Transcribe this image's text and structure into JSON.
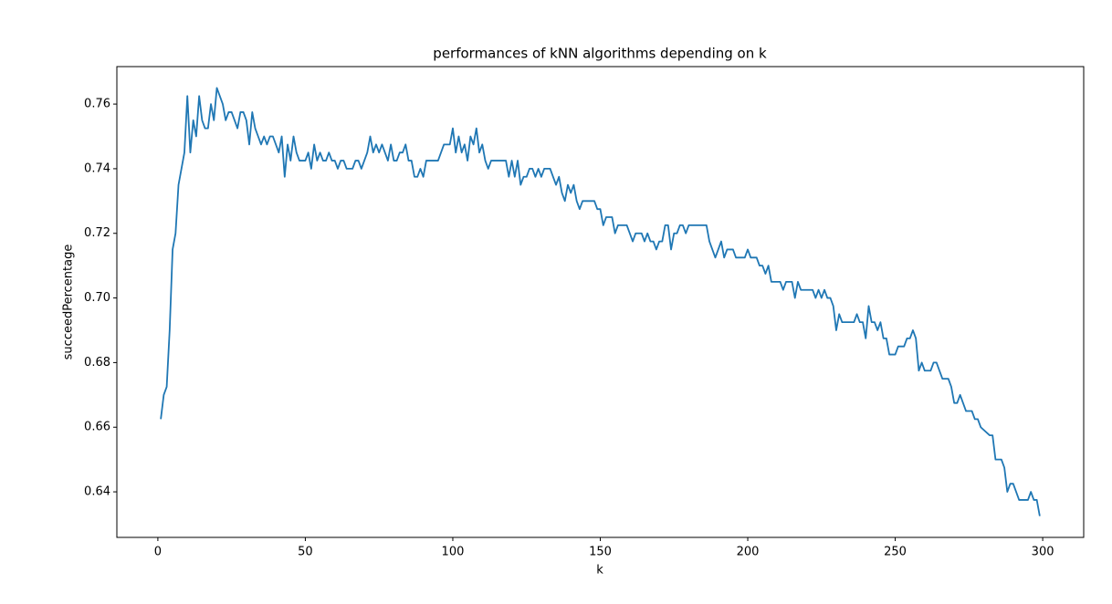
{
  "chart_data": {
    "type": "line",
    "title": "performances of kNN algorithms depending on k",
    "x_label": "k",
    "y_label": "succeedPercentage",
    "x": [
      1,
      2,
      3,
      4,
      5,
      6,
      7,
      8,
      9,
      10,
      11,
      12,
      13,
      14,
      15,
      16,
      17,
      18,
      19,
      20,
      21,
      22,
      23,
      24,
      25,
      26,
      27,
      28,
      29,
      30,
      31,
      32,
      33,
      34,
      35,
      36,
      37,
      38,
      39,
      40,
      41,
      42,
      43,
      44,
      45,
      46,
      47,
      48,
      50,
      51,
      52,
      53,
      54,
      55,
      56,
      57,
      58,
      59,
      60,
      61,
      62,
      63,
      64,
      66,
      67,
      68,
      69,
      70,
      71,
      72,
      73,
      74,
      75,
      76,
      77,
      78,
      79,
      80,
      81,
      82,
      83,
      84,
      85,
      86,
      87,
      88,
      89,
      90,
      91,
      95,
      96,
      97,
      99,
      100,
      101,
      102,
      103,
      104,
      105,
      106,
      107,
      108,
      109,
      110,
      111,
      112,
      113,
      118,
      119,
      120,
      121,
      122,
      123,
      124,
      125,
      126,
      127,
      128,
      129,
      130,
      131,
      133,
      134,
      135,
      136,
      137,
      138,
      139,
      140,
      141,
      142,
      143,
      144,
      148,
      149,
      150,
      151,
      152,
      154,
      155,
      156,
      159,
      160,
      161,
      162,
      164,
      165,
      166,
      167,
      168,
      169,
      170,
      171,
      172,
      173,
      174,
      175,
      176,
      177,
      178,
      179,
      180,
      186,
      187,
      188,
      189,
      190,
      191,
      192,
      193,
      195,
      196,
      199,
      200,
      201,
      203,
      204,
      205,
      206,
      207,
      208,
      211,
      212,
      213,
      215,
      216,
      217,
      218,
      222,
      223,
      224,
      225,
      226,
      227,
      228,
      229,
      230,
      231,
      232,
      236,
      237,
      238,
      239,
      240,
      241,
      242,
      243,
      244,
      245,
      246,
      247,
      248,
      250,
      251,
      253,
      254,
      255,
      256,
      257,
      258,
      259,
      260,
      262,
      263,
      264,
      265,
      266,
      268,
      269,
      270,
      271,
      272,
      273,
      274,
      276,
      277,
      278,
      279,
      282,
      283,
      284,
      286,
      287,
      288,
      289,
      290,
      291,
      292,
      295,
      296,
      297,
      298,
      299
    ],
    "series": [
      {
        "name": "succeedPercentage",
        "color": "#1f77b4",
        "values": [
          0.6625,
          0.67,
          0.6725,
          0.69,
          0.715,
          0.72,
          0.735,
          0.74,
          0.745,
          0.7625,
          0.745,
          0.755,
          0.75,
          0.7625,
          0.755,
          0.7525,
          0.7525,
          0.76,
          0.755,
          0.765,
          0.7625,
          0.76,
          0.755,
          0.7575,
          0.7575,
          0.755,
          0.7525,
          0.7575,
          0.7575,
          0.755,
          0.7475,
          0.7575,
          0.7525,
          0.75,
          0.7475,
          0.75,
          0.7475,
          0.75,
          0.75,
          0.7475,
          0.745,
          0.75,
          0.7375,
          0.7475,
          0.7425,
          0.75,
          0.745,
          0.7425,
          0.7425,
          0.745,
          0.74,
          0.7475,
          0.7425,
          0.745,
          0.7425,
          0.7425,
          0.745,
          0.7425,
          0.7425,
          0.74,
          0.7425,
          0.7425,
          0.74,
          0.74,
          0.7425,
          0.7425,
          0.74,
          0.7425,
          0.745,
          0.75,
          0.745,
          0.7475,
          0.745,
          0.7475,
          0.745,
          0.7425,
          0.7475,
          0.7425,
          0.7425,
          0.745,
          0.745,
          0.7475,
          0.7425,
          0.7425,
          0.7375,
          0.7375,
          0.74,
          0.7375,
          0.7425,
          0.7425,
          0.745,
          0.7475,
          0.7475,
          0.7525,
          0.745,
          0.75,
          0.745,
          0.7475,
          0.7425,
          0.75,
          0.7475,
          0.7525,
          0.745,
          0.7475,
          0.7425,
          0.74,
          0.7425,
          0.7425,
          0.7375,
          0.7425,
          0.7375,
          0.7425,
          0.735,
          0.7375,
          0.7375,
          0.74,
          0.74,
          0.7375,
          0.74,
          0.7375,
          0.74,
          0.74,
          0.7375,
          0.735,
          0.7375,
          0.7325,
          0.73,
          0.735,
          0.7325,
          0.735,
          0.73,
          0.7275,
          0.73,
          0.73,
          0.7275,
          0.7275,
          0.7225,
          0.725,
          0.725,
          0.72,
          0.7225,
          0.7225,
          0.72,
          0.7175,
          0.72,
          0.72,
          0.7175,
          0.72,
          0.7175,
          0.7175,
          0.715,
          0.7175,
          0.7175,
          0.7225,
          0.7225,
          0.715,
          0.72,
          0.72,
          0.7225,
          0.7225,
          0.72,
          0.7225,
          0.7225,
          0.7175,
          0.715,
          0.7125,
          0.715,
          0.7175,
          0.7125,
          0.715,
          0.715,
          0.7125,
          0.7125,
          0.715,
          0.7125,
          0.7125,
          0.71,
          0.71,
          0.7075,
          0.71,
          0.705,
          0.705,
          0.7025,
          0.705,
          0.705,
          0.7,
          0.705,
          0.7025,
          0.7025,
          0.7,
          0.7025,
          0.7,
          0.7025,
          0.7,
          0.7,
          0.6975,
          0.69,
          0.695,
          0.6925,
          0.6925,
          0.695,
          0.6925,
          0.6925,
          0.6875,
          0.6975,
          0.6925,
          0.6925,
          0.69,
          0.6925,
          0.6875,
          0.6875,
          0.6825,
          0.6825,
          0.685,
          0.685,
          0.6875,
          0.6875,
          0.69,
          0.6875,
          0.6775,
          0.68,
          0.6775,
          0.6775,
          0.68,
          0.68,
          0.6775,
          0.675,
          0.675,
          0.6725,
          0.6675,
          0.6675,
          0.67,
          0.6675,
          0.665,
          0.665,
          0.6625,
          0.6625,
          0.66,
          0.6575,
          0.6575,
          0.65,
          0.65,
          0.6475,
          0.64,
          0.6425,
          0.6425,
          0.64,
          0.6375,
          0.6375,
          0.64,
          0.6375,
          0.6375,
          0.6325
        ]
      }
    ],
    "xlim": [
      -13.9,
      313.9
    ],
    "ylim": [
      0.6259,
      0.7716
    ],
    "xticks": [
      0,
      50,
      100,
      150,
      200,
      250,
      300
    ],
    "yticks": [
      {
        "value": 0.64,
        "label": "0.64"
      },
      {
        "value": 0.66,
        "label": "0.66"
      },
      {
        "value": 0.68,
        "label": "0.68"
      },
      {
        "value": 0.7,
        "label": "0.70"
      },
      {
        "value": 0.72,
        "label": "0.72"
      },
      {
        "value": 0.74,
        "label": "0.74"
      },
      {
        "value": 0.76,
        "label": "0.76"
      }
    ]
  }
}
